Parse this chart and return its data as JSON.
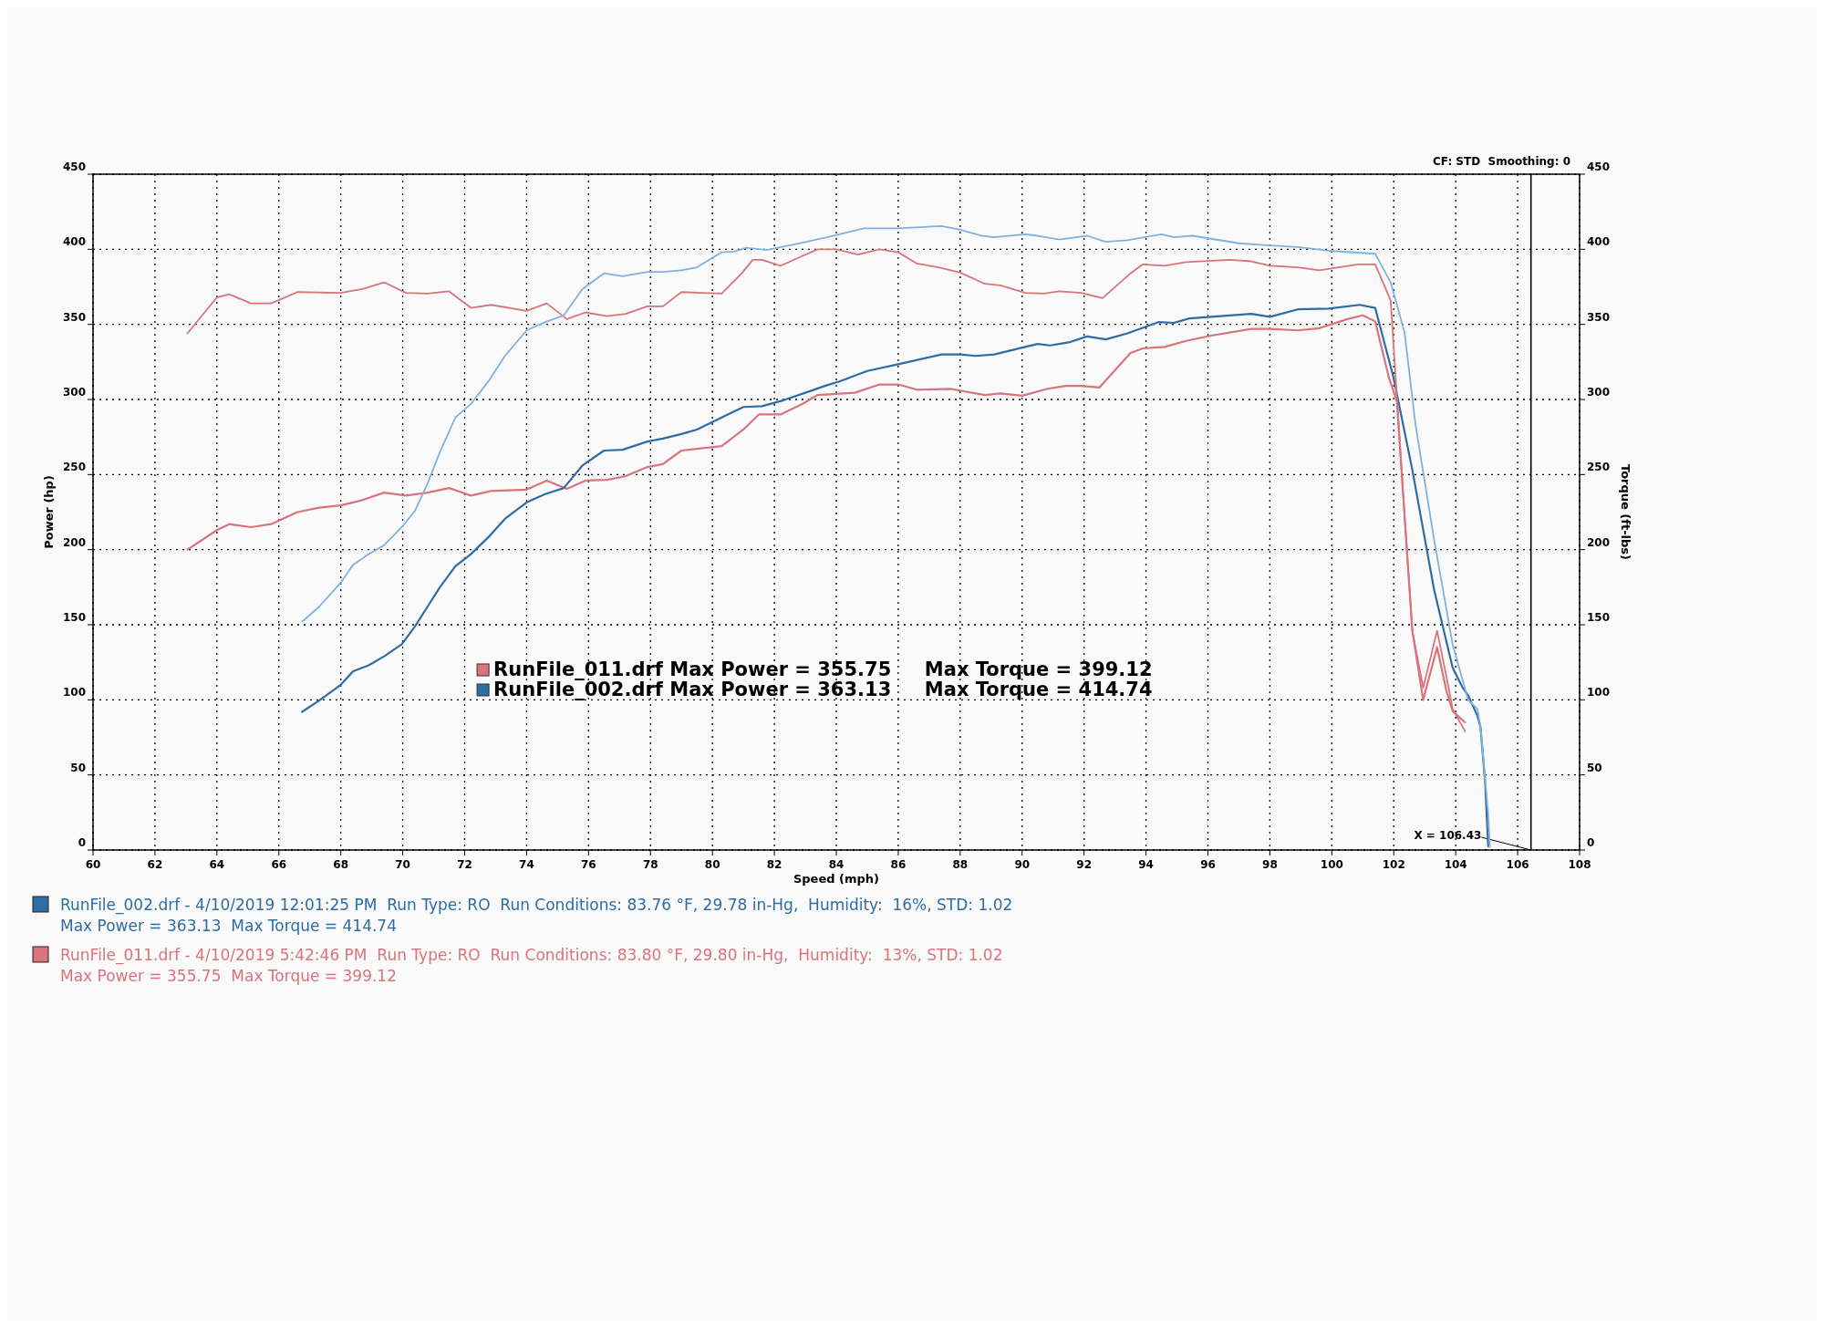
{
  "chart_data": {
    "type": "line",
    "xlabel": "Speed (mph)",
    "ylabel": "Power (hp)",
    "y2label": "Torque (ft-lbs)",
    "xlim": [
      60,
      108
    ],
    "xticks": [
      60,
      62,
      64,
      66,
      68,
      70,
      72,
      74,
      76,
      78,
      80,
      82,
      84,
      86,
      88,
      90,
      92,
      94,
      96,
      98,
      100,
      102,
      104,
      106,
      108
    ],
    "ylim": [
      0,
      450
    ],
    "yticks": [
      0,
      50,
      100,
      150,
      200,
      250,
      300,
      350,
      400,
      450
    ],
    "y2lim": [
      0,
      450
    ],
    "y2ticks": [
      0,
      50,
      100,
      150,
      200,
      250,
      300,
      350,
      400,
      450
    ],
    "grid": true,
    "legend": "center left",
    "line_style": "solid",
    "marker": "none",
    "ref_lines": [
      {
        "axis": "x",
        "value": 106.43,
        "label": "X = 106.43",
        "color": "#000000"
      }
    ],
    "annotations": [
      "CF: STD  Smoothing: 0",
      "RunFile_002.drf - 4/10/2019 12:01:25 PM  Run Type: RO  Run Conditions: 83.76 °F, 29.78 in-Hg,  Humidity:  16%, STD: 1.02",
      "Max Power = 363.13  Max Torque = 414.74",
      "RunFile_011.drf - 4/10/2019 5:42:46 PM  Run Type: RO  Run Conditions: 83.80 °F, 29.80 in-Hg,  Humidity:  13%, STD: 1.02",
      "Max Power = 355.75  Max Torque = 399.12"
    ],
    "series": [
      {
        "name": "RunFile_011.drf Max Power = 355.75     Max Torque = 399.12",
        "color": "#d9747c",
        "x": [
          63.05,
          64,
          64.4,
          65.1,
          65.75,
          66.6,
          67.3,
          68,
          68.7,
          69.4,
          70.1,
          70.8,
          71.5,
          72.2,
          72.85,
          74,
          74.65,
          75.3,
          75.9,
          76.6,
          77.2,
          77.9,
          78.4,
          79,
          80.3,
          81,
          81.5,
          82.2,
          82.9,
          83.4,
          84.6,
          85.4,
          86,
          86.6,
          87.7,
          88.8,
          89.3,
          90,
          90.8,
          91.4,
          91.9,
          92.5,
          93.5,
          93.9,
          94.6,
          95.3,
          96.1,
          97.4,
          98,
          98.9,
          99.6,
          100.5,
          101,
          101.4,
          101.85,
          102.1,
          102.3,
          102.6,
          102.95,
          103.4,
          103.7,
          103.9,
          104.3
        ],
        "values": [
          200,
          213,
          217,
          215,
          217,
          225,
          228,
          229.5,
          233,
          238,
          236,
          238,
          241,
          236,
          239,
          240,
          246,
          240.5,
          246,
          246.5,
          249,
          255,
          257,
          266,
          269,
          280,
          290,
          290,
          297,
          303,
          304.5,
          310,
          310,
          306.5,
          307,
          303,
          304,
          302.5,
          307,
          309,
          309,
          308,
          331,
          334,
          335,
          339,
          342.5,
          347,
          347,
          346,
          347.5,
          353.5,
          356,
          352,
          314,
          299,
          237.5,
          146,
          100,
          135,
          106,
          92.5,
          85
        ]
      },
      {
        "name": "RunFile_002.drf Max Power = 363.13     Max Torque = 414.74",
        "color": "#2e6da4",
        "x": [
          66.75,
          67.3,
          68,
          68.4,
          68.9,
          69.4,
          69.97,
          70.4,
          70.8,
          71.2,
          71.7,
          72.2,
          72.8,
          73.3,
          74,
          74.6,
          75.2,
          75.8,
          76.5,
          77.1,
          77.9,
          78.4,
          79,
          79.5,
          80.3,
          81,
          81.6,
          82.3,
          83,
          83.7,
          84.1,
          85,
          86,
          87.4,
          88,
          88.5,
          89.1,
          90.1,
          90.5,
          90.9,
          91.5,
          92.1,
          92.7,
          93.4,
          94.4,
          94.9,
          95.4,
          96.1,
          97.4,
          98,
          98.9,
          99.9,
          100.9,
          101.4,
          102,
          102.6,
          103.3,
          103.9,
          104.2,
          104.4,
          104.7,
          104.8,
          104.95,
          105.05
        ],
        "values": [
          92,
          99.5,
          110,
          119,
          123,
          129,
          137,
          149,
          162,
          175,
          189,
          197,
          209,
          220.5,
          231.5,
          237,
          241,
          256,
          266,
          266.5,
          272,
          274,
          277,
          280,
          288,
          295,
          295.5,
          299.5,
          304.5,
          309.5,
          312,
          319,
          323.5,
          330,
          330,
          329,
          330,
          335,
          337,
          336,
          338,
          342,
          340,
          344,
          351.5,
          351,
          354,
          355,
          357,
          355,
          360,
          360.5,
          363,
          361,
          314,
          253,
          173.5,
          121.5,
          109,
          103,
          89.5,
          82,
          45,
          2.5
        ]
      },
      {
        "color": "#d9747c",
        "axis": "y2",
        "x": [
          63.05,
          64,
          64.4,
          65.1,
          65.75,
          66.6,
          68,
          68.7,
          69.4,
          70.1,
          70.8,
          71.5,
          72.2,
          72.85,
          74,
          74.65,
          75.3,
          75.9,
          76.6,
          77.2,
          77.9,
          78.4,
          79,
          80.3,
          80.95,
          81.3,
          81.6,
          82.2,
          82.9,
          83.4,
          84,
          84.7,
          85.4,
          86,
          86.6,
          87.3,
          88,
          88.8,
          89.3,
          90.1,
          90.7,
          91.2,
          91.9,
          92.6,
          93.5,
          93.9,
          94.6,
          95.3,
          96.7,
          97.4,
          98,
          98.9,
          99.6,
          100.85,
          101.4,
          101.9,
          102.1,
          102.35,
          102.6,
          102.95,
          103.4,
          103.7,
          103.9,
          104.3
        ],
        "values": [
          344,
          368,
          370,
          364,
          364,
          371.5,
          371,
          373.5,
          378,
          371,
          370.5,
          372,
          361,
          363,
          359,
          364,
          353.5,
          358,
          355.5,
          357,
          362,
          362,
          371.5,
          370.5,
          384,
          393,
          393,
          389,
          395.5,
          400,
          400,
          396.5,
          400,
          398,
          390.5,
          388,
          384.5,
          377,
          376,
          371,
          370.5,
          372,
          371,
          367.5,
          384,
          390,
          389,
          391.5,
          393,
          392,
          389,
          388,
          386,
          390,
          390,
          366,
          302,
          222,
          146,
          108,
          146,
          115.5,
          94,
          79
        ]
      },
      {
        "color": "#7fb2e0",
        "axis": "y2",
        "x": [
          66.75,
          67.3,
          68,
          68.4,
          68.9,
          69.4,
          69.97,
          70.4,
          70.8,
          71.2,
          71.7,
          72.2,
          72.8,
          73.3,
          74,
          74.6,
          75.2,
          75.8,
          76.5,
          77.1,
          77.9,
          78.4,
          79,
          79.5,
          80.3,
          80.7,
          81.1,
          81.75,
          82.7,
          83.7,
          84.1,
          84.9,
          86,
          87.4,
          88,
          88.7,
          89.1,
          90.1,
          90.5,
          91.2,
          92.1,
          92.7,
          93.4,
          94.5,
          94.9,
          95.5,
          97,
          98,
          98.9,
          99.9,
          101.4,
          101.9,
          102.35,
          102.7,
          103.3,
          103.9,
          104.4,
          104.7,
          104.8,
          105.05,
          105.1
        ],
        "values": [
          152,
          162,
          178,
          190,
          197,
          203,
          215,
          226,
          244,
          265,
          288,
          297,
          313,
          329,
          346,
          351.5,
          356,
          373.5,
          384,
          382,
          385,
          385,
          386,
          388,
          398,
          398.5,
          401,
          399.5,
          403.5,
          408,
          410,
          414,
          414,
          415.5,
          413,
          409,
          408,
          410,
          409,
          406.5,
          409,
          405,
          406,
          410,
          408,
          409,
          404,
          402.5,
          401.5,
          399,
          397,
          378,
          344.5,
          283.5,
          207,
          137,
          100,
          94,
          82,
          24,
          2
        ]
      }
    ]
  }
}
